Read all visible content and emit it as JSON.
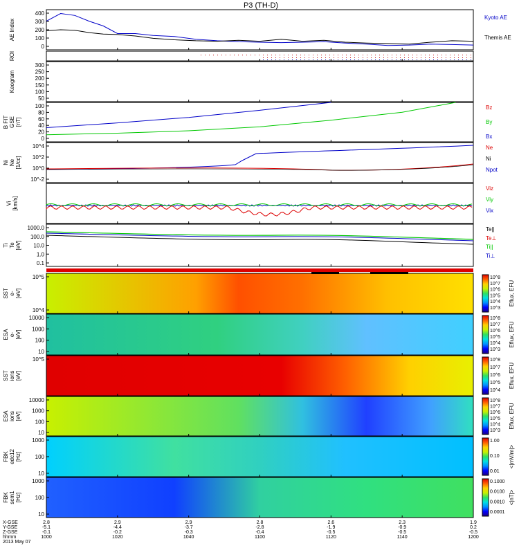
{
  "title": "P3 (TH-D)",
  "chart_data": {
    "type": "stacked-timeseries",
    "x": {
      "label": "hhmm",
      "ticks": [
        "1000",
        "1020",
        "1040",
        "1100",
        "1120",
        "1140",
        "1200"
      ],
      "start_min": 600,
      "end_min": 720,
      "date": "2013 May 07",
      "ephem_labels": [
        "X-GSE",
        "Y-GSE",
        "Z-GSE",
        "hhmm"
      ],
      "ephem_rows": [
        [
          "2.8",
          "2.9",
          "2.9",
          "2.8",
          "2.6",
          "2.3",
          "1.9"
        ],
        [
          "-5.1",
          "-4.4",
          "-3.7",
          "-2.8",
          "-1.9",
          "-0.9",
          "0.2"
        ],
        [
          "-0.1",
          "-0.2",
          "-0.3",
          "-0.4",
          "-0.5",
          "-0.5",
          "-0.5"
        ]
      ]
    },
    "panels": [
      {
        "id": "ae",
        "ylabel": [
          "AE Index"
        ],
        "ytick_labels": [
          "400",
          "300",
          "200",
          "100",
          "0"
        ],
        "ylim": [
          0,
          420
        ],
        "series": [
          {
            "name": "Kyoto AE",
            "color": "#0000c8",
            "values": [
              [
                600,
                300
              ],
              [
                604,
                380
              ],
              [
                608,
                360
              ],
              [
                612,
                300
              ],
              [
                616,
                250
              ],
              [
                620,
                170
              ],
              [
                625,
                170
              ],
              [
                630,
                150
              ],
              [
                636,
                140
              ],
              [
                642,
                110
              ],
              [
                648,
                95
              ],
              [
                654,
                85
              ],
              [
                660,
                80
              ],
              [
                666,
                75
              ],
              [
                672,
                80
              ],
              [
                678,
                85
              ],
              [
                684,
                70
              ],
              [
                690,
                60
              ],
              [
                696,
                45
              ],
              [
                702,
                50
              ],
              [
                708,
                60
              ],
              [
                714,
                55
              ],
              [
                720,
                50
              ]
            ]
          },
          {
            "name": "Themis AE",
            "color": "#000000",
            "values": [
              [
                600,
                200
              ],
              [
                604,
                210
              ],
              [
                608,
                205
              ],
              [
                612,
                180
              ],
              [
                616,
                165
              ],
              [
                620,
                160
              ],
              [
                625,
                145
              ],
              [
                630,
                120
              ],
              [
                636,
                105
              ],
              [
                642,
                95
              ],
              [
                648,
                90
              ],
              [
                654,
                100
              ],
              [
                660,
                90
              ],
              [
                666,
                110
              ],
              [
                672,
                90
              ],
              [
                678,
                100
              ],
              [
                684,
                80
              ],
              [
                690,
                70
              ],
              [
                696,
                65
              ],
              [
                702,
                60
              ],
              [
                708,
                80
              ],
              [
                714,
                95
              ],
              [
                720,
                90
              ]
            ]
          }
        ]
      },
      {
        "id": "roi",
        "ylabel": [
          "ROI"
        ]
      },
      {
        "id": "keogram",
        "ylabel": [
          "Keogram"
        ],
        "ytick_labels": [
          "300",
          "250",
          "200",
          "150",
          "100",
          "50"
        ]
      },
      {
        "id": "bfit",
        "ylabel": [
          "B FIT",
          "GSE",
          "[nT]"
        ],
        "ytick_labels": [
          "100",
          "80",
          "60",
          "40",
          "20",
          "0"
        ],
        "ylim": [
          0,
          100
        ],
        "series": [
          {
            "name": "Bz",
            "color": "#dd0000",
            "values": []
          },
          {
            "name": "By",
            "color": "#00c800",
            "values": [
              [
                600,
                18
              ],
              [
                620,
                22
              ],
              [
                640,
                28
              ],
              [
                660,
                38
              ],
              [
                680,
                55
              ],
              [
                700,
                75
              ],
              [
                715,
                100
              ]
            ]
          },
          {
            "name": "Bx",
            "color": "#0000c8",
            "values": [
              [
                600,
                36
              ],
              [
                620,
                48
              ],
              [
                640,
                62
              ],
              [
                660,
                80
              ],
              [
                680,
                100
              ]
            ]
          }
        ]
      },
      {
        "id": "ni",
        "ylabel": [
          "Ni",
          "Ne",
          "[1/cc]"
        ],
        "ytick_labels": [
          "10^4",
          "10^2",
          "10^0",
          "10^-2"
        ],
        "legend": [
          "Ne",
          "Ni",
          "Npot"
        ]
      },
      {
        "id": "vi",
        "ylabel": [
          "Vi",
          "[km/s]"
        ],
        "legend": [
          "Viz",
          "Viy",
          "Vix"
        ]
      },
      {
        "id": "ti",
        "ylabel": [
          "Ti",
          "Te",
          "[eV]"
        ],
        "ytick_labels": [
          "1000.0",
          "100.0",
          "10.0",
          "1.0",
          "0.1"
        ],
        "legend": [
          "Te||",
          "Te⊥",
          "Ti||",
          "Ti⊥"
        ]
      },
      {
        "id": "sst_e",
        "ylabel": [
          "SST",
          "e-",
          "[eV]"
        ],
        "ytick_labels": [
          "10^5",
          "10^4"
        ],
        "cbar_label": "Eflux, EFU",
        "cbar_ticks": [
          "10^8",
          "10^7",
          "10^6",
          "10^5",
          "10^4",
          "10^3"
        ]
      },
      {
        "id": "esa_e",
        "ylabel": [
          "ESA",
          "e-",
          "[eV]"
        ],
        "ytick_labels": [
          "10000",
          "1000",
          "100",
          "10"
        ],
        "cbar_label": "Eflux, EFU",
        "cbar_ticks": [
          "10^8",
          "10^7",
          "10^6",
          "10^5",
          "10^4",
          "10^3"
        ]
      },
      {
        "id": "sst_i",
        "ylabel": [
          "SST",
          "ions",
          "[eV]"
        ],
        "ytick_labels": [
          "10^5"
        ],
        "cbar_label": "Eflux, EFU",
        "cbar_ticks": [
          "10^8",
          "10^7",
          "10^6",
          "10^5",
          "10^4"
        ]
      },
      {
        "id": "esa_i",
        "ylabel": [
          "ESA",
          "ions",
          "[eV]"
        ],
        "ytick_labels": [
          "10000",
          "1000",
          "100",
          "10"
        ],
        "cbar_label": "Eflux, EFU",
        "cbar_ticks": [
          "10^8",
          "10^7",
          "10^6",
          "10^5",
          "10^4",
          "10^3"
        ]
      },
      {
        "id": "fbk_e",
        "ylabel": [
          "FBK",
          "edc12",
          "[Hz]"
        ],
        "ytick_labels": [
          "1000",
          "100",
          "10"
        ],
        "cbar_label": "<|mV/m|>",
        "cbar_ticks": [
          "1.00",
          "0.10",
          "0.01"
        ]
      },
      {
        "id": "fbk_b",
        "ylabel": [
          "FBK",
          "scm1",
          "[Hz]"
        ],
        "ytick_labels": [
          "1000",
          "100",
          "10"
        ],
        "cbar_label": "<|nT|>",
        "cbar_ticks": [
          "0.1000",
          "0.0100",
          "0.0010",
          "0.0001"
        ]
      }
    ]
  }
}
